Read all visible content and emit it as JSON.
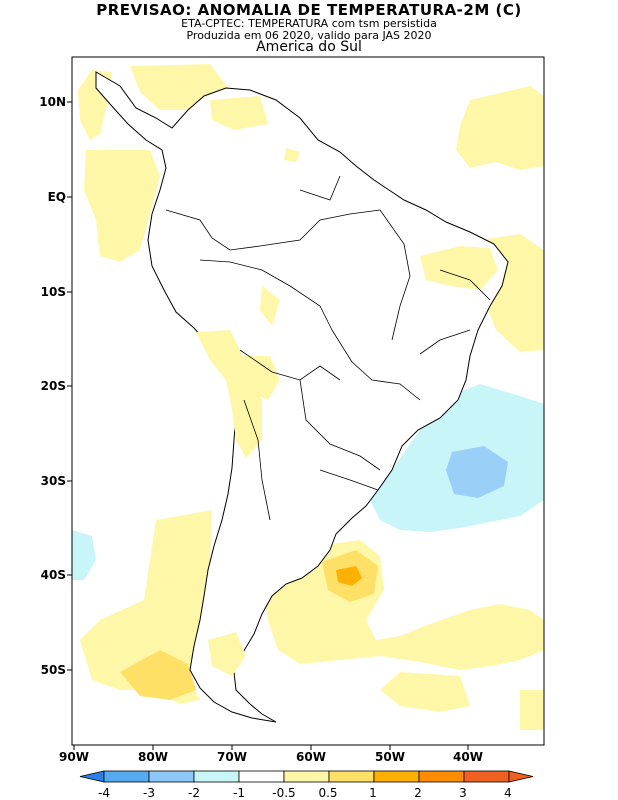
{
  "header": {
    "title": "PREVISAO: ANOMALIA DE TEMPERATURA-2M (C)",
    "subtitle": "ETA-CPTEC: TEMPERATURA com tsm persistida",
    "produced": "Produzida em 06 2020, valido para JAS 2020",
    "region": "America do Sul"
  },
  "axes": {
    "lat_labels": [
      "10N",
      "EQ",
      "10S",
      "20S",
      "30S",
      "40S",
      "50S"
    ],
    "lon_labels": [
      "90W",
      "80W",
      "70W",
      "60W",
      "50W",
      "40W"
    ]
  },
  "colorbar": {
    "labels": [
      "-4",
      "-3",
      "-2",
      "-1",
      "-0.5",
      "0.5",
      "1",
      "2",
      "3",
      "4"
    ],
    "colors": [
      "#2a7fe6",
      "#55aaf0",
      "#8cc8f8",
      "#c8f5f8",
      "#ffffff",
      "#fff7a8",
      "#ffe066",
      "#ffb000",
      "#ff8c00",
      "#f06020"
    ]
  },
  "palette": {
    "land": "#ffffff",
    "coast": "#000000",
    "warm_light": "#fff7a8",
    "warm_mid": "#ffe066",
    "warm_strong": "#ffb000",
    "cool_light": "#c8f5f8",
    "cool_mid": "#9ad0f8"
  }
}
